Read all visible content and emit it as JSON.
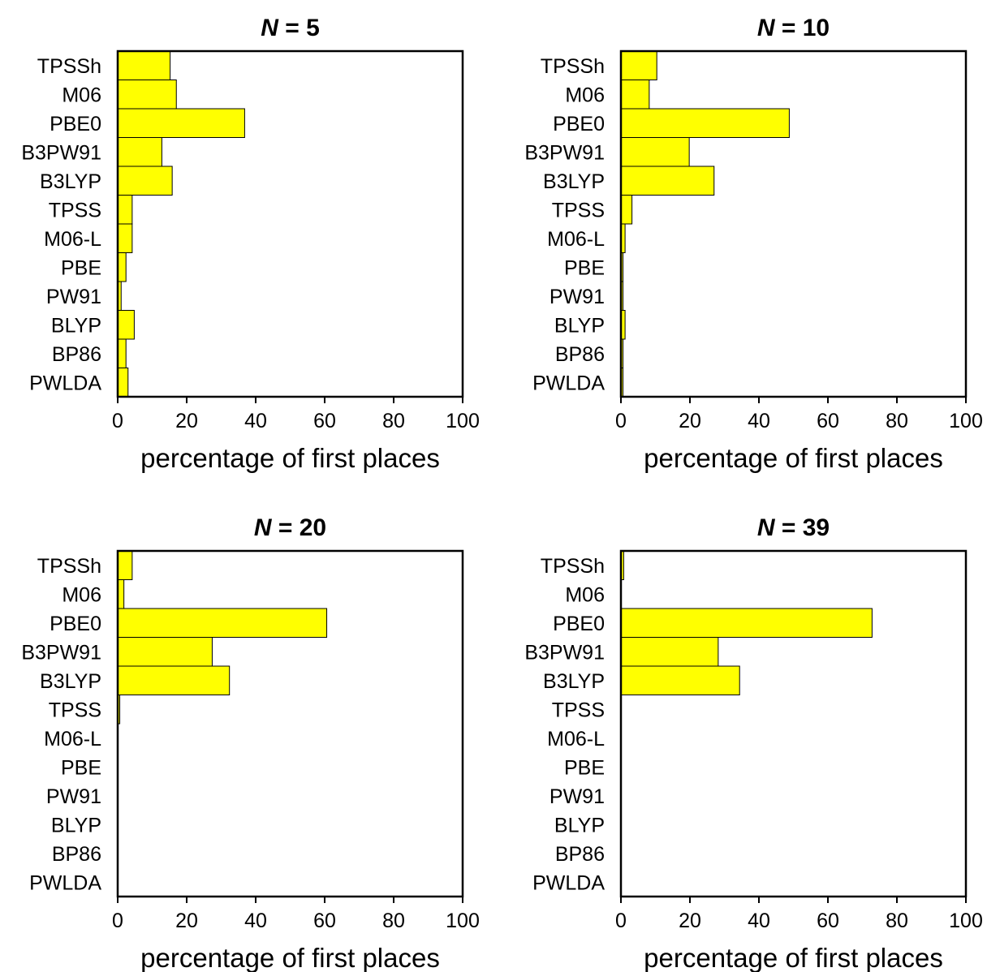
{
  "chart_data": [
    {
      "type": "bar",
      "orientation": "horizontal",
      "title_var": "N",
      "title_rest": " = 5",
      "categories": [
        "TPSSh",
        "M06",
        "PBE0",
        "B3PW91",
        "B3LYP",
        "TPSS",
        "M06-L",
        "PBE",
        "PW91",
        "BLYP",
        "BP86",
        "PWLDA"
      ],
      "values": [
        15.2,
        17,
        36.8,
        12.8,
        15.8,
        4.2,
        4.2,
        2.4,
        1,
        4.8,
        2.4,
        3
      ],
      "xlabel": "percentage of first places",
      "xlim": [
        0,
        100
      ],
      "xticks": [
        "0",
        "20",
        "40",
        "60",
        "80",
        "100"
      ],
      "bar_color": "#ffff00"
    },
    {
      "type": "bar",
      "orientation": "horizontal",
      "title_var": "N",
      "title_rest": " = 10",
      "categories": [
        "TPSSh",
        "M06",
        "PBE0",
        "B3PW91",
        "B3LYP",
        "TPSS",
        "M06-L",
        "PBE",
        "PW91",
        "BLYP",
        "BP86",
        "PWLDA"
      ],
      "values": [
        10.4,
        8.2,
        48.8,
        19.8,
        27,
        3.2,
        1.2,
        0.6,
        0.6,
        1.2,
        0.6,
        0.6
      ],
      "xlabel": "percentage of first places",
      "xlim": [
        0,
        100
      ],
      "xticks": [
        "0",
        "20",
        "40",
        "60",
        "80",
        "100"
      ],
      "bar_color": "#ffff00"
    },
    {
      "type": "bar",
      "orientation": "horizontal",
      "title_var": "N",
      "title_rest": " = 20",
      "categories": [
        "TPSSh",
        "M06",
        "PBE0",
        "B3PW91",
        "B3LYP",
        "TPSS",
        "M06-L",
        "PBE",
        "PW91",
        "BLYP",
        "BP86",
        "PWLDA"
      ],
      "values": [
        4.2,
        1.8,
        60.6,
        27.4,
        32.4,
        0.6,
        0,
        0,
        0,
        0,
        0,
        0
      ],
      "xlabel": "percentage of first places",
      "xlim": [
        0,
        100
      ],
      "xticks": [
        "0",
        "20",
        "40",
        "60",
        "80",
        "100"
      ],
      "bar_color": "#ffff00"
    },
    {
      "type": "bar",
      "orientation": "horizontal",
      "title_var": "N",
      "title_rest": " = 39",
      "categories": [
        "TPSSh",
        "M06",
        "PBE0",
        "B3PW91",
        "B3LYP",
        "TPSS",
        "M06-L",
        "PBE",
        "PW91",
        "BLYP",
        "BP86",
        "PWLDA"
      ],
      "values": [
        0.8,
        0,
        72.8,
        28.2,
        34.4,
        0,
        0,
        0,
        0,
        0,
        0,
        0
      ],
      "xlabel": "percentage of first places",
      "xlim": [
        0,
        100
      ],
      "xticks": [
        "0",
        "20",
        "40",
        "60",
        "80",
        "100"
      ],
      "bar_color": "#ffff00"
    }
  ]
}
